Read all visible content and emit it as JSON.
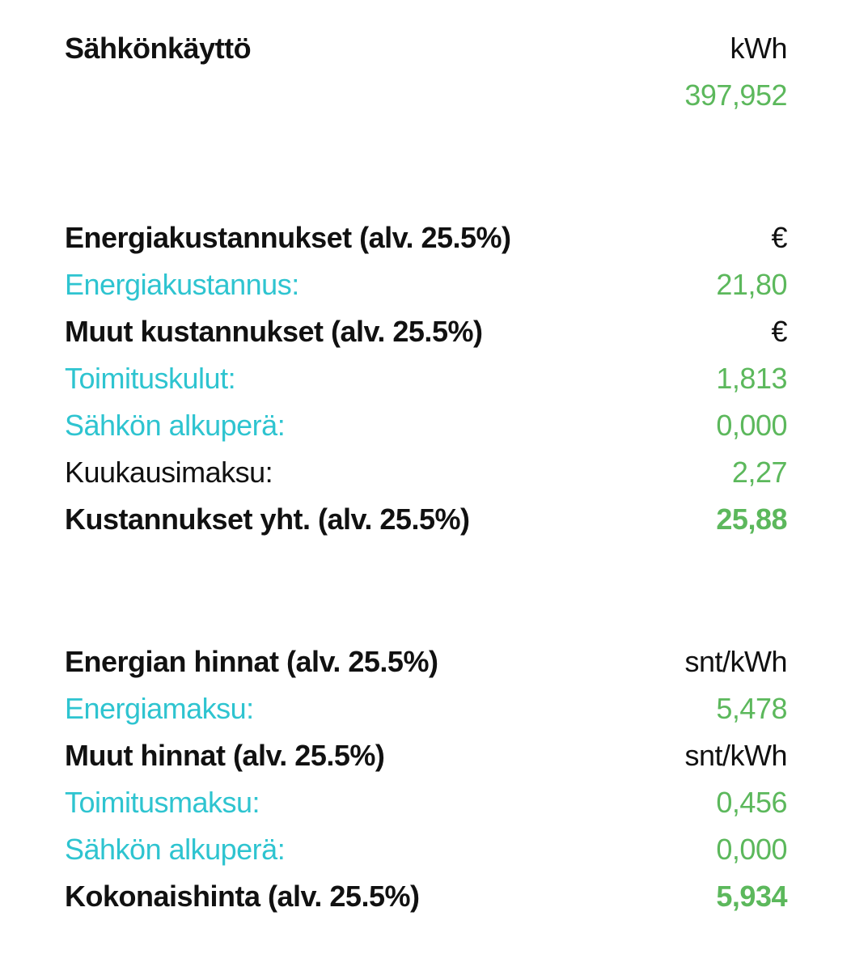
{
  "colors": {
    "text": "#111111",
    "link": "#2ec4d0",
    "value": "#5cb85c"
  },
  "consumption": {
    "title": "Sähkönkäyttö",
    "unit": "kWh",
    "value": "397,952"
  },
  "costs": {
    "energy_header": "Energiakustannukset (alv. 25.5%)",
    "energy_unit": "€",
    "energy_cost_label": "Energiakustannus:",
    "energy_cost_value": "21,80",
    "other_header": "Muut kustannukset (alv. 25.5%)",
    "other_unit": "€",
    "delivery_label": "Toimituskulut:",
    "delivery_value": "1,813",
    "origin_label": "Sähkön alkuperä:",
    "origin_value": "0,000",
    "monthly_label": "Kuukausimaksu:",
    "monthly_value": "2,27",
    "total_label": "Kustannukset yht. (alv. 25.5%)",
    "total_value": "25,88"
  },
  "prices": {
    "energy_header": "Energian hinnat (alv. 25.5%)",
    "energy_unit": "snt/kWh",
    "energy_fee_label": "Energiamaksu:",
    "energy_fee_value": "5,478",
    "other_header": "Muut hinnat (alv. 25.5%)",
    "other_unit": "snt/kWh",
    "delivery_fee_label": "Toimitusmaksu:",
    "delivery_fee_value": "0,456",
    "origin_label": "Sähkön alkuperä:",
    "origin_value": "0,000",
    "total_label": "Kokonaishinta (alv. 25.5%)",
    "total_value": "5,934"
  }
}
